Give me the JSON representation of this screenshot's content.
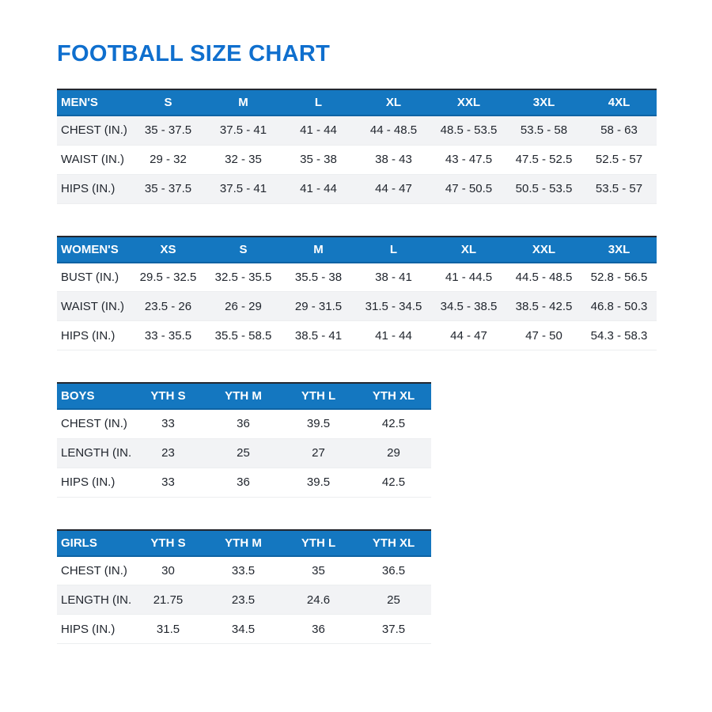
{
  "page": {
    "title": "FOOTBALL SIZE CHART"
  },
  "colors": {
    "title_blue": "#0f6fce",
    "header_blue": "#1477c0",
    "header_text": "#ffffff",
    "body_text": "#21262e",
    "stripe_gray": "#f2f3f5",
    "row_divider": "#eceef0",
    "table_top_border": "#23272f"
  },
  "tables": [
    {
      "id": "mens",
      "group_label": "MEN'S",
      "size_headers": [
        "S",
        "M",
        "L",
        "XL",
        "XXL",
        "3XL",
        "4XL"
      ],
      "stripe_rows": [
        0,
        2
      ],
      "rows": [
        {
          "label": "CHEST (IN.)",
          "values": [
            "35 - 37.5",
            "37.5 - 41",
            "41 - 44",
            "44 - 48.5",
            "48.5 - 53.5",
            "53.5 - 58",
            "58 - 63"
          ]
        },
        {
          "label": "WAIST (IN.)",
          "values": [
            "29 - 32",
            "32 - 35",
            "35 - 38",
            "38 - 43",
            "43 - 47.5",
            "47.5 - 52.5",
            "52.5 - 57"
          ]
        },
        {
          "label": "HIPS (IN.)",
          "values": [
            "35 - 37.5",
            "37.5 - 41",
            "41 - 44",
            "44 - 47",
            "47 - 50.5",
            "50.5 - 53.5",
            "53.5 - 57"
          ]
        }
      ]
    },
    {
      "id": "womens",
      "group_label": "WOMEN'S",
      "size_headers": [
        "XS",
        "S",
        "M",
        "L",
        "XL",
        "XXL",
        "3XL"
      ],
      "stripe_rows": [
        1
      ],
      "rows": [
        {
          "label": "BUST (IN.)",
          "values": [
            "29.5 - 32.5",
            "32.5 - 35.5",
            "35.5 - 38",
            "38 - 41",
            "41 - 44.5",
            "44.5 - 48.5",
            "52.8 - 56.5"
          ]
        },
        {
          "label": "WAIST (IN.)",
          "values": [
            "23.5 - 26",
            "26 - 29",
            "29 - 31.5",
            "31.5 - 34.5",
            "34.5 - 38.5",
            "38.5 - 42.5",
            "46.8 - 50.3"
          ]
        },
        {
          "label": "HIPS (IN.)",
          "values": [
            "33 - 35.5",
            "35.5 - 58.5",
            "38.5 - 41",
            "41 - 44",
            "44 - 47",
            "47 - 50",
            "54.3 - 58.3"
          ]
        }
      ]
    },
    {
      "id": "boys",
      "group_label": "BOYS",
      "size_headers": [
        "YTH S",
        "YTH M",
        "YTH L",
        "YTH XL"
      ],
      "stripe_rows": [
        1
      ],
      "rows": [
        {
          "label": "CHEST (IN.)",
          "values": [
            "33",
            "36",
            "39.5",
            "42.5"
          ]
        },
        {
          "label": "LENGTH (IN.)",
          "values": [
            "23",
            "25",
            "27",
            "29"
          ]
        },
        {
          "label": "HIPS (IN.)",
          "values": [
            "33",
            "36",
            "39.5",
            "42.5"
          ]
        }
      ]
    },
    {
      "id": "girls",
      "group_label": "GIRLS",
      "size_headers": [
        "YTH S",
        "YTH M",
        "YTH L",
        "YTH XL"
      ],
      "stripe_rows": [
        1
      ],
      "rows": [
        {
          "label": "CHEST (IN.)",
          "values": [
            "30",
            "33.5",
            "35",
            "36.5"
          ]
        },
        {
          "label": "LENGTH (IN.)",
          "values": [
            "21.75",
            "23.5",
            "24.6",
            "25"
          ]
        },
        {
          "label": "HIPS (IN.)",
          "values": [
            "31.5",
            "34.5",
            "36",
            "37.5"
          ]
        }
      ]
    }
  ]
}
